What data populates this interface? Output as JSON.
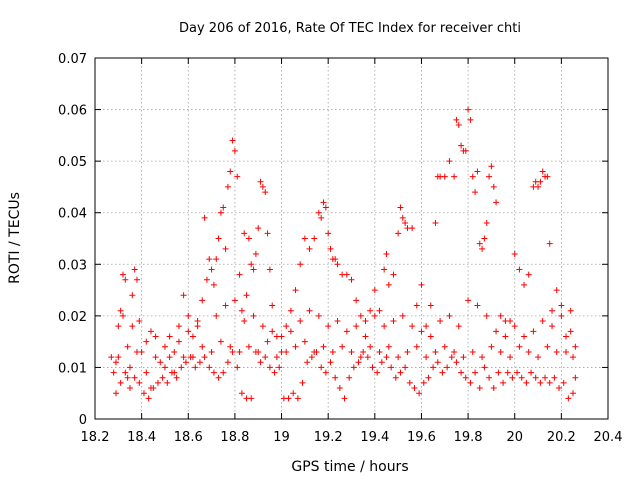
{
  "chart_data": {
    "type": "scatter",
    "title": "Day 206 of 2016, Rate Of TEC Index for receiver chti",
    "xlabel": "GPS time / hours",
    "ylabel": "ROTI / TECUs",
    "xlim": [
      18.2,
      20.4
    ],
    "ylim": [
      0,
      0.07
    ],
    "x_ticks": [
      18.2,
      18.4,
      18.6,
      18.8,
      19.0,
      19.2,
      19.4,
      19.6,
      19.8,
      20.0,
      20.2,
      20.4
    ],
    "x_tick_labels": [
      "18.2",
      "18.4",
      "18.6",
      "18.8",
      "19",
      "19.2",
      "19.4",
      "19.6",
      "19.8",
      "20",
      "20.2",
      "20.4"
    ],
    "y_ticks": [
      0,
      0.01,
      0.02,
      0.03,
      0.04,
      0.05,
      0.06,
      0.07
    ],
    "y_tick_labels": [
      "0",
      "0.01",
      "0.02",
      "0.03",
      "0.04",
      "0.05",
      "0.06",
      "0.07"
    ],
    "grid": true,
    "marker": "plus",
    "color": "#ff0000",
    "series_name": "ROTI",
    "x_range_data": [
      18.27,
      20.26
    ],
    "points": [
      [
        18.27,
        0.012
      ],
      [
        18.28,
        0.009
      ],
      [
        18.29,
        0.011
      ],
      [
        18.3,
        0.018
      ],
      [
        18.31,
        0.021
      ],
      [
        18.32,
        0.028
      ],
      [
        18.33,
        0.027
      ],
      [
        18.34,
        0.008
      ],
      [
        18.35,
        0.01
      ],
      [
        18.36,
        0.024
      ],
      [
        18.37,
        0.029
      ],
      [
        18.38,
        0.027
      ],
      [
        18.39,
        0.019
      ],
      [
        18.4,
        0.013
      ],
      [
        18.42,
        0.009
      ],
      [
        18.44,
        0.006
      ],
      [
        18.46,
        0.016
      ],
      [
        18.48,
        0.011
      ],
      [
        18.5,
        0.01
      ],
      [
        18.52,
        0.012
      ],
      [
        18.54,
        0.009
      ],
      [
        18.56,
        0.015
      ],
      [
        18.58,
        0.024
      ],
      [
        18.6,
        0.02
      ],
      [
        18.62,
        0.012
      ],
      [
        18.64,
        0.018
      ],
      [
        18.66,
        0.023
      ],
      [
        18.67,
        0.039
      ],
      [
        18.68,
        0.027
      ],
      [
        18.69,
        0.031
      ],
      [
        18.7,
        0.029
      ],
      [
        18.71,
        0.026
      ],
      [
        18.72,
        0.031
      ],
      [
        18.73,
        0.035
      ],
      [
        18.74,
        0.04
      ],
      [
        18.75,
        0.041
      ],
      [
        18.76,
        0.033
      ],
      [
        18.77,
        0.045
      ],
      [
        18.78,
        0.048
      ],
      [
        18.79,
        0.054
      ],
      [
        18.8,
        0.052
      ],
      [
        18.81,
        0.047
      ],
      [
        18.82,
        0.028
      ],
      [
        18.83,
        0.021
      ],
      [
        18.84,
        0.036
      ],
      [
        18.85,
        0.024
      ],
      [
        18.86,
        0.035
      ],
      [
        18.87,
        0.03
      ],
      [
        18.88,
        0.029
      ],
      [
        18.89,
        0.032
      ],
      [
        18.9,
        0.037
      ],
      [
        18.91,
        0.046
      ],
      [
        18.92,
        0.045
      ],
      [
        18.93,
        0.044
      ],
      [
        18.94,
        0.036
      ],
      [
        18.95,
        0.029
      ],
      [
        18.96,
        0.022
      ],
      [
        18.98,
        0.016
      ],
      [
        19.0,
        0.013
      ],
      [
        19.02,
        0.018
      ],
      [
        19.04,
        0.021
      ],
      [
        19.06,
        0.025
      ],
      [
        19.08,
        0.03
      ],
      [
        19.1,
        0.035
      ],
      [
        19.12,
        0.033
      ],
      [
        19.14,
        0.035
      ],
      [
        19.16,
        0.04
      ],
      [
        19.17,
        0.039
      ],
      [
        19.18,
        0.042
      ],
      [
        19.19,
        0.041
      ],
      [
        19.2,
        0.036
      ],
      [
        19.21,
        0.033
      ],
      [
        19.22,
        0.031
      ],
      [
        19.23,
        0.031
      ],
      [
        19.24,
        0.03
      ],
      [
        19.26,
        0.028
      ],
      [
        19.28,
        0.028
      ],
      [
        19.3,
        0.027
      ],
      [
        19.32,
        0.023
      ],
      [
        19.34,
        0.02
      ],
      [
        19.36,
        0.016
      ],
      [
        19.38,
        0.021
      ],
      [
        19.4,
        0.025
      ],
      [
        19.42,
        0.021
      ],
      [
        19.44,
        0.029
      ],
      [
        19.45,
        0.032
      ],
      [
        19.46,
        0.026
      ],
      [
        19.48,
        0.028
      ],
      [
        19.5,
        0.036
      ],
      [
        19.51,
        0.041
      ],
      [
        19.52,
        0.039
      ],
      [
        19.53,
        0.038
      ],
      [
        19.54,
        0.037
      ],
      [
        19.56,
        0.037
      ],
      [
        19.58,
        0.022
      ],
      [
        19.6,
        0.026
      ],
      [
        19.62,
        0.018
      ],
      [
        19.64,
        0.022
      ],
      [
        19.66,
        0.038
      ],
      [
        19.67,
        0.047
      ],
      [
        19.68,
        0.047
      ],
      [
        19.7,
        0.047
      ],
      [
        19.72,
        0.05
      ],
      [
        19.74,
        0.047
      ],
      [
        19.75,
        0.058
      ],
      [
        19.76,
        0.057
      ],
      [
        19.77,
        0.053
      ],
      [
        19.78,
        0.052
      ],
      [
        19.79,
        0.052
      ],
      [
        19.8,
        0.06
      ],
      [
        19.81,
        0.058
      ],
      [
        19.82,
        0.047
      ],
      [
        19.83,
        0.044
      ],
      [
        19.84,
        0.048
      ],
      [
        19.85,
        0.034
      ],
      [
        19.86,
        0.033
      ],
      [
        19.87,
        0.035
      ],
      [
        19.88,
        0.038
      ],
      [
        19.89,
        0.047
      ],
      [
        19.9,
        0.049
      ],
      [
        19.91,
        0.045
      ],
      [
        19.92,
        0.042
      ],
      [
        19.94,
        0.02
      ],
      [
        19.96,
        0.019
      ],
      [
        19.98,
        0.019
      ],
      [
        20.0,
        0.032
      ],
      [
        20.02,
        0.029
      ],
      [
        20.04,
        0.026
      ],
      [
        20.06,
        0.028
      ],
      [
        20.08,
        0.045
      ],
      [
        20.09,
        0.046
      ],
      [
        20.1,
        0.045
      ],
      [
        20.11,
        0.046
      ],
      [
        20.12,
        0.048
      ],
      [
        20.13,
        0.047
      ],
      [
        20.14,
        0.047
      ],
      [
        20.15,
        0.034
      ],
      [
        20.16,
        0.021
      ],
      [
        20.18,
        0.025
      ],
      [
        20.2,
        0.022
      ],
      [
        20.22,
        0.016
      ],
      [
        20.24,
        0.021
      ],
      [
        20.25,
        0.012
      ],
      [
        20.26,
        0.008
      ],
      [
        18.29,
        0.005
      ],
      [
        18.31,
        0.007
      ],
      [
        18.33,
        0.009
      ],
      [
        18.35,
        0.006
      ],
      [
        18.37,
        0.008
      ],
      [
        18.39,
        0.007
      ],
      [
        18.41,
        0.005
      ],
      [
        18.43,
        0.004
      ],
      [
        18.45,
        0.006
      ],
      [
        18.47,
        0.007
      ],
      [
        18.49,
        0.008
      ],
      [
        18.51,
        0.007
      ],
      [
        18.53,
        0.009
      ],
      [
        18.55,
        0.008
      ],
      [
        18.57,
        0.01
      ],
      [
        18.59,
        0.011
      ],
      [
        18.61,
        0.012
      ],
      [
        18.63,
        0.01
      ],
      [
        18.65,
        0.011
      ],
      [
        18.67,
        0.012
      ],
      [
        18.69,
        0.01
      ],
      [
        18.71,
        0.009
      ],
      [
        18.73,
        0.008
      ],
      [
        18.75,
        0.009
      ],
      [
        18.77,
        0.011
      ],
      [
        18.79,
        0.013
      ],
      [
        18.81,
        0.01
      ],
      [
        18.83,
        0.005
      ],
      [
        18.85,
        0.004
      ],
      [
        18.87,
        0.004
      ],
      [
        18.89,
        0.013
      ],
      [
        18.91,
        0.011
      ],
      [
        18.93,
        0.012
      ],
      [
        18.95,
        0.01
      ],
      [
        18.97,
        0.009
      ],
      [
        18.99,
        0.01
      ],
      [
        19.01,
        0.004
      ],
      [
        19.03,
        0.004
      ],
      [
        19.05,
        0.005
      ],
      [
        19.07,
        0.004
      ],
      [
        19.09,
        0.007
      ],
      [
        19.11,
        0.011
      ],
      [
        19.13,
        0.012
      ],
      [
        19.15,
        0.013
      ],
      [
        19.17,
        0.01
      ],
      [
        19.19,
        0.009
      ],
      [
        19.21,
        0.011
      ],
      [
        19.23,
        0.008
      ],
      [
        19.25,
        0.006
      ],
      [
        19.27,
        0.004
      ],
      [
        19.29,
        0.008
      ],
      [
        19.31,
        0.01
      ],
      [
        19.33,
        0.011
      ],
      [
        19.35,
        0.013
      ],
      [
        19.37,
        0.012
      ],
      [
        19.39,
        0.01
      ],
      [
        19.41,
        0.009
      ],
      [
        19.43,
        0.011
      ],
      [
        19.45,
        0.012
      ],
      [
        19.47,
        0.01
      ],
      [
        19.49,
        0.008
      ],
      [
        19.51,
        0.009
      ],
      [
        19.53,
        0.01
      ],
      [
        19.55,
        0.007
      ],
      [
        19.57,
        0.006
      ],
      [
        19.59,
        0.005
      ],
      [
        19.61,
        0.007
      ],
      [
        19.63,
        0.008
      ],
      [
        19.65,
        0.01
      ],
      [
        19.67,
        0.011
      ],
      [
        19.69,
        0.009
      ],
      [
        19.71,
        0.01
      ],
      [
        19.73,
        0.012
      ],
      [
        19.75,
        0.011
      ],
      [
        19.77,
        0.009
      ],
      [
        19.79,
        0.008
      ],
      [
        19.81,
        0.007
      ],
      [
        19.83,
        0.009
      ],
      [
        19.85,
        0.006
      ],
      [
        19.87,
        0.01
      ],
      [
        19.89,
        0.008
      ],
      [
        19.91,
        0.006
      ],
      [
        19.93,
        0.009
      ],
      [
        19.95,
        0.007
      ],
      [
        19.97,
        0.009
      ],
      [
        19.99,
        0.008
      ],
      [
        20.01,
        0.009
      ],
      [
        20.03,
        0.008
      ],
      [
        20.05,
        0.007
      ],
      [
        20.07,
        0.009
      ],
      [
        20.09,
        0.008
      ],
      [
        20.11,
        0.007
      ],
      [
        20.13,
        0.008
      ],
      [
        20.15,
        0.007
      ],
      [
        20.17,
        0.008
      ],
      [
        20.19,
        0.006
      ],
      [
        20.21,
        0.007
      ],
      [
        20.23,
        0.004
      ],
      [
        20.25,
        0.005
      ],
      [
        18.3,
        0.012
      ],
      [
        18.34,
        0.014
      ],
      [
        18.38,
        0.013
      ],
      [
        18.42,
        0.015
      ],
      [
        18.46,
        0.012
      ],
      [
        18.5,
        0.014
      ],
      [
        18.54,
        0.013
      ],
      [
        18.58,
        0.012
      ],
      [
        18.62,
        0.016
      ],
      [
        18.66,
        0.014
      ],
      [
        18.7,
        0.013
      ],
      [
        18.74,
        0.015
      ],
      [
        18.78,
        0.014
      ],
      [
        18.82,
        0.013
      ],
      [
        18.86,
        0.014
      ],
      [
        18.9,
        0.013
      ],
      [
        18.94,
        0.015
      ],
      [
        18.98,
        0.012
      ],
      [
        19.02,
        0.013
      ],
      [
        19.06,
        0.014
      ],
      [
        19.1,
        0.015
      ],
      [
        19.14,
        0.013
      ],
      [
        19.18,
        0.014
      ],
      [
        19.22,
        0.013
      ],
      [
        19.26,
        0.014
      ],
      [
        19.3,
        0.013
      ],
      [
        19.34,
        0.012
      ],
      [
        19.38,
        0.014
      ],
      [
        19.42,
        0.013
      ],
      [
        19.46,
        0.014
      ],
      [
        19.5,
        0.012
      ],
      [
        19.54,
        0.013
      ],
      [
        19.58,
        0.014
      ],
      [
        19.62,
        0.012
      ],
      [
        19.66,
        0.013
      ],
      [
        19.7,
        0.014
      ],
      [
        19.74,
        0.013
      ],
      [
        19.78,
        0.012
      ],
      [
        19.82,
        0.013
      ],
      [
        19.86,
        0.012
      ],
      [
        19.9,
        0.014
      ],
      [
        19.94,
        0.013
      ],
      [
        19.98,
        0.012
      ],
      [
        20.02,
        0.014
      ],
      [
        20.06,
        0.013
      ],
      [
        20.1,
        0.012
      ],
      [
        20.14,
        0.014
      ],
      [
        20.18,
        0.013
      ],
      [
        20.22,
        0.013
      ],
      [
        20.26,
        0.014
      ],
      [
        18.32,
        0.02
      ],
      [
        18.36,
        0.018
      ],
      [
        18.44,
        0.017
      ],
      [
        18.52,
        0.016
      ],
      [
        18.56,
        0.018
      ],
      [
        18.6,
        0.017
      ],
      [
        18.64,
        0.019
      ],
      [
        18.72,
        0.02
      ],
      [
        18.76,
        0.022
      ],
      [
        18.8,
        0.023
      ],
      [
        18.84,
        0.019
      ],
      [
        18.88,
        0.02
      ],
      [
        18.92,
        0.018
      ],
      [
        18.96,
        0.017
      ],
      [
        19.0,
        0.016
      ],
      [
        19.04,
        0.017
      ],
      [
        19.08,
        0.019
      ],
      [
        19.12,
        0.021
      ],
      [
        19.16,
        0.02
      ],
      [
        19.2,
        0.018
      ],
      [
        19.24,
        0.019
      ],
      [
        19.28,
        0.017
      ],
      [
        19.32,
        0.018
      ],
      [
        19.36,
        0.019
      ],
      [
        19.4,
        0.02
      ],
      [
        19.44,
        0.018
      ],
      [
        19.48,
        0.019
      ],
      [
        19.52,
        0.02
      ],
      [
        19.56,
        0.018
      ],
      [
        19.6,
        0.017
      ],
      [
        19.64,
        0.016
      ],
      [
        19.68,
        0.019
      ],
      [
        19.72,
        0.02
      ],
      [
        19.76,
        0.018
      ],
      [
        19.8,
        0.023
      ],
      [
        19.84,
        0.022
      ],
      [
        19.88,
        0.02
      ],
      [
        19.92,
        0.017
      ],
      [
        19.96,
        0.016
      ],
      [
        20.0,
        0.018
      ],
      [
        20.04,
        0.016
      ],
      [
        20.08,
        0.017
      ],
      [
        20.12,
        0.019
      ],
      [
        20.16,
        0.018
      ],
      [
        20.2,
        0.02
      ],
      [
        20.24,
        0.017
      ]
    ]
  }
}
